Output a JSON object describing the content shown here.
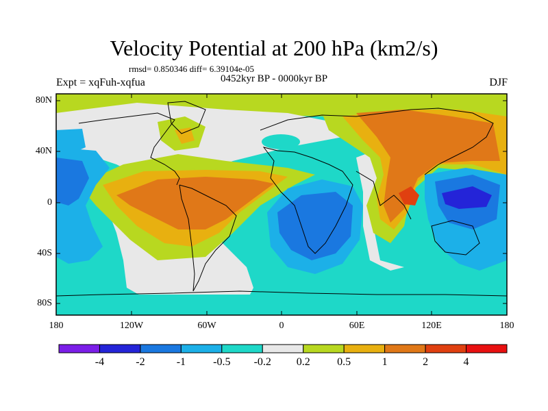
{
  "title": "Velocity Potential at 200 hPa (km2/s)",
  "stats_line": "rmsd= 0.850346 diff= 6.39104e-05",
  "period_line": "0452kyr BP - 0000kyr BP",
  "left_label": "Expt = xqFuh-xqfua",
  "right_label": "DJF",
  "lat_labels": [
    "80N",
    "40N",
    "0",
    "40S",
    "80S"
  ],
  "lon_labels": [
    "180",
    "120W",
    "60W",
    "0",
    "60E",
    "120E",
    "180"
  ],
  "colorbar": {
    "levels": [
      "-4",
      "-2",
      "-1",
      "-0.5",
      "-0.2",
      "0.2",
      "0.5",
      "1",
      "2",
      "4"
    ],
    "colors": [
      "#7b1ee8",
      "#2424d8",
      "#1a78e0",
      "#1cb0e8",
      "#1ed8c8",
      "#e8e8e8",
      "#b8d820",
      "#e8b010",
      "#e07818",
      "#e04010",
      "#e81010"
    ]
  }
}
